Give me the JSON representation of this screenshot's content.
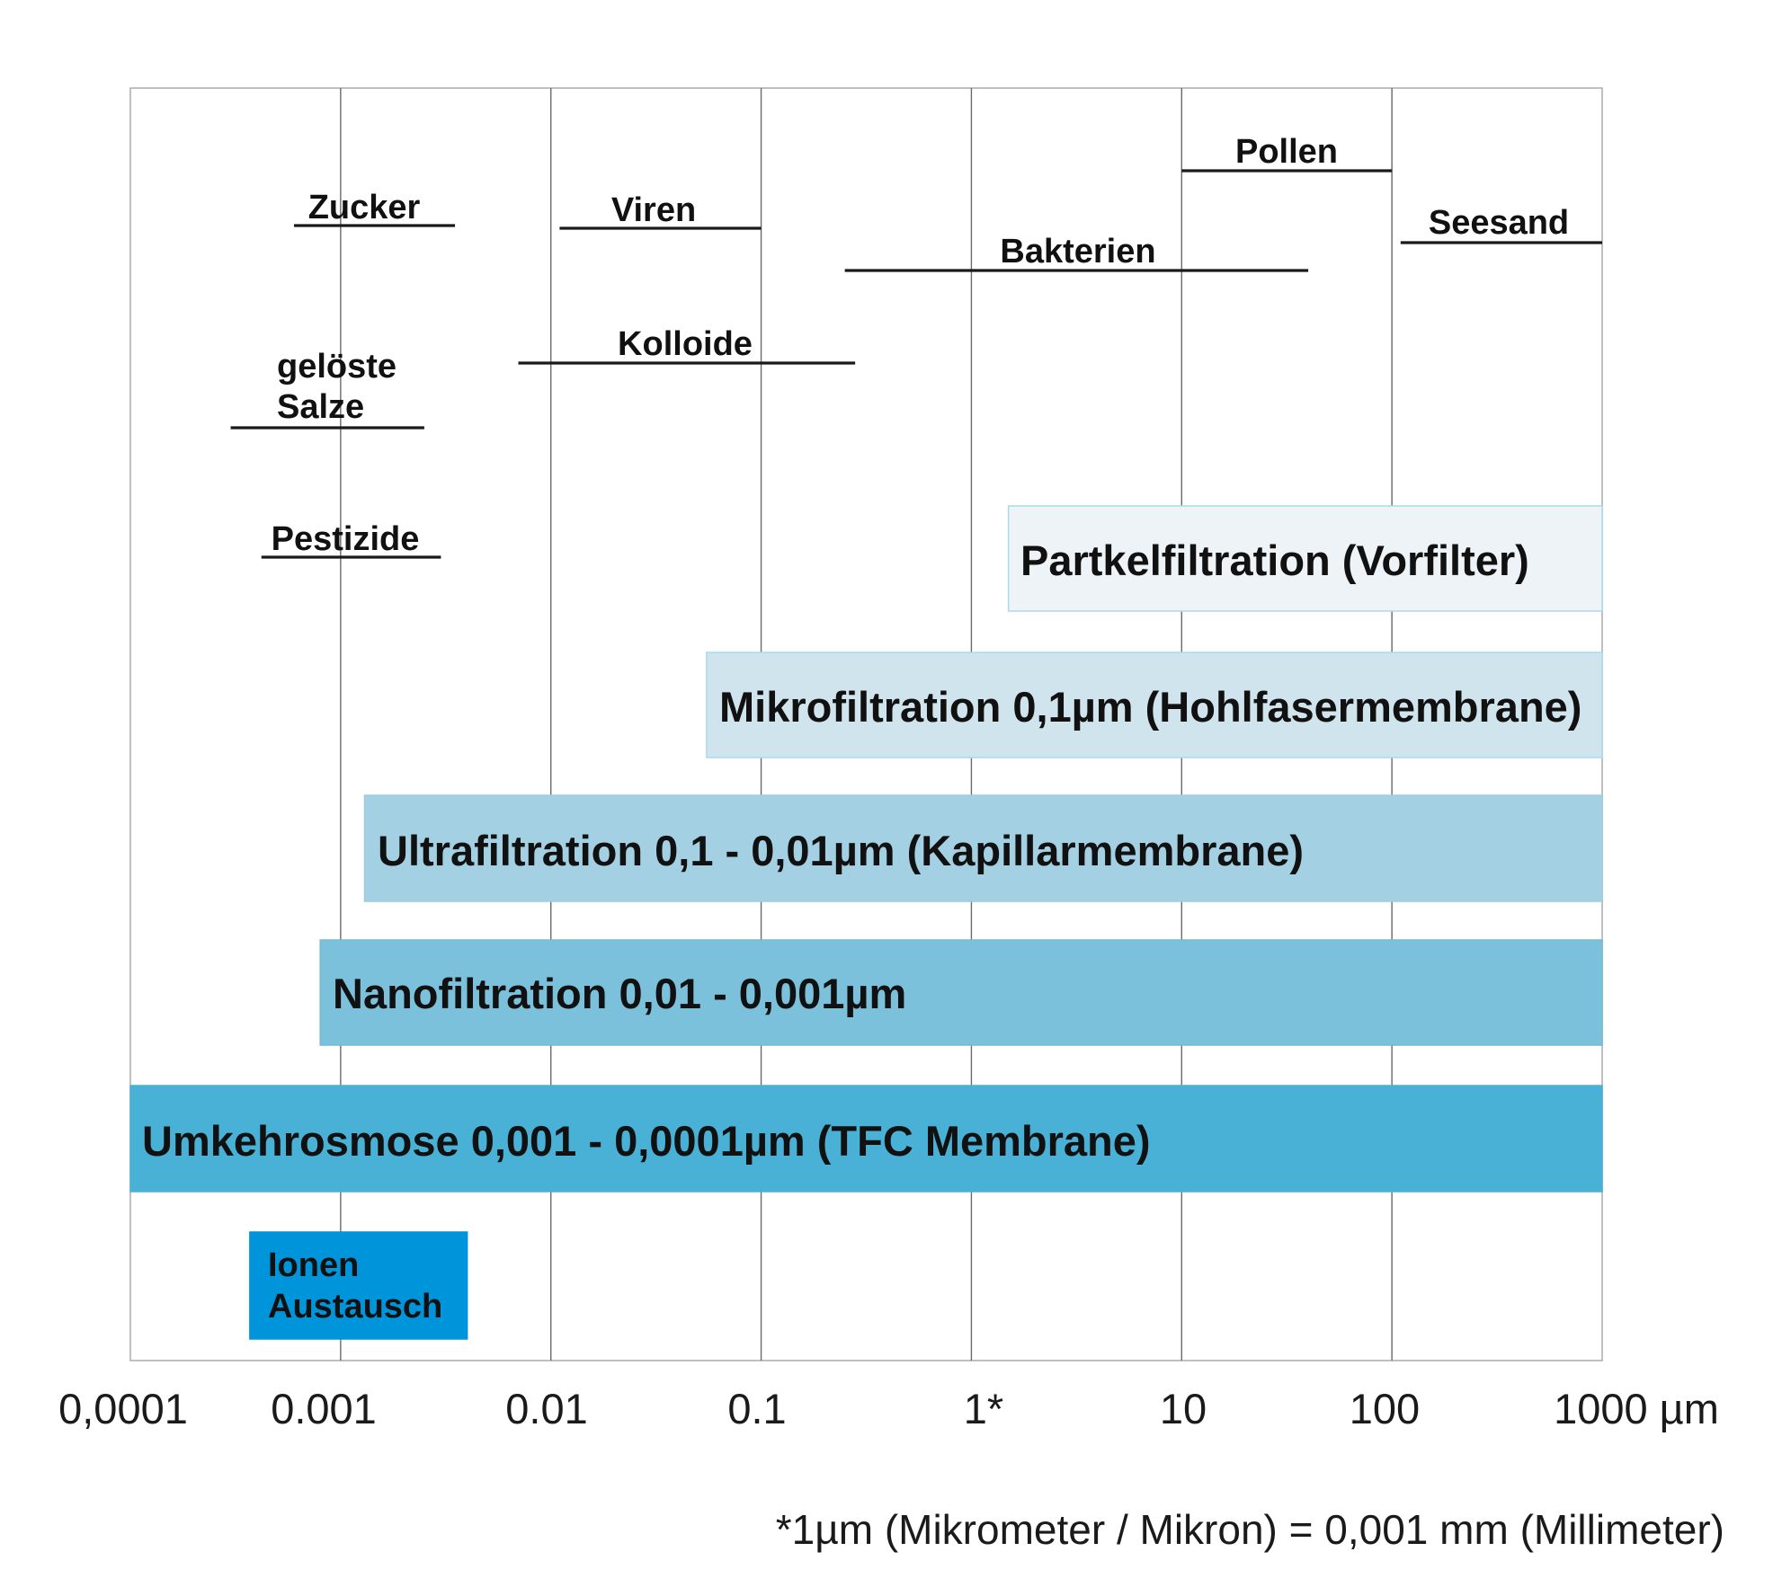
{
  "chart_data": {
    "type": "bar",
    "title": "",
    "xlabel": "",
    "ylabel": "",
    "x_scale": "log",
    "x_unit": "µm",
    "xlim": [
      0.0001,
      1000
    ],
    "grid": true,
    "x_ticks": [
      {
        "value": 0.0001,
        "label": "0,0001"
      },
      {
        "value": 0.001,
        "label": "0.001"
      },
      {
        "value": 0.01,
        "label": "0.01"
      },
      {
        "value": 0.1,
        "label": "0.1"
      },
      {
        "value": 1,
        "label": "1*"
      },
      {
        "value": 10,
        "label": "10"
      },
      {
        "value": 100,
        "label": "100"
      },
      {
        "value": 1000,
        "label": "1000 µm"
      }
    ],
    "particles": [
      {
        "label": "Zucker",
        "range": [
          0.0006,
          0.0035
        ]
      },
      {
        "label": "Viren",
        "range": [
          0.011,
          0.1
        ]
      },
      {
        "label": "Bakterien",
        "range": [
          0.25,
          40
        ]
      },
      {
        "label": "Pollen",
        "range": [
          10,
          100
        ]
      },
      {
        "label": "Seesand",
        "range": [
          110,
          1000
        ]
      },
      {
        "label": "Kolloide",
        "range": [
          0.007,
          0.28
        ]
      },
      {
        "label": "gelöste Salze",
        "range": [
          0.0003,
          0.0025
        ]
      },
      {
        "label": "Pestizide",
        "range": [
          0.00042,
          0.003
        ]
      }
    ],
    "series": [
      {
        "name": "Partkelfiltration (Vorfilter)",
        "range": [
          1.5,
          1000
        ],
        "color": "#eef3f7"
      },
      {
        "name": "Mikrofiltration 0,1µm (Hohlfasermembrane)",
        "range": [
          0.055,
          1000
        ],
        "color": "#d0e4ed"
      },
      {
        "name": "Ultrafiltration 0,1 - 0,01µm (Kapillarmembrane)",
        "range": [
          0.0013,
          1000
        ],
        "color": "#a3d1e3"
      },
      {
        "name": "Nanofiltration 0,01 - 0,001µm",
        "range": [
          0.0008,
          1000
        ],
        "color": "#7bc1dc"
      },
      {
        "name": "Umkehrosmose 0,001 - 0,0001µm  (TFC Membrane)",
        "range": [
          0.0001,
          1000
        ],
        "color": "#4ab1d6"
      },
      {
        "name": "Ionen Austausch",
        "range": [
          0.00037,
          0.004
        ],
        "color": "#0095da"
      }
    ]
  },
  "footnote": "*1µm (Mikrometer / Mikron) = 0,001 mm (Millimeter)"
}
